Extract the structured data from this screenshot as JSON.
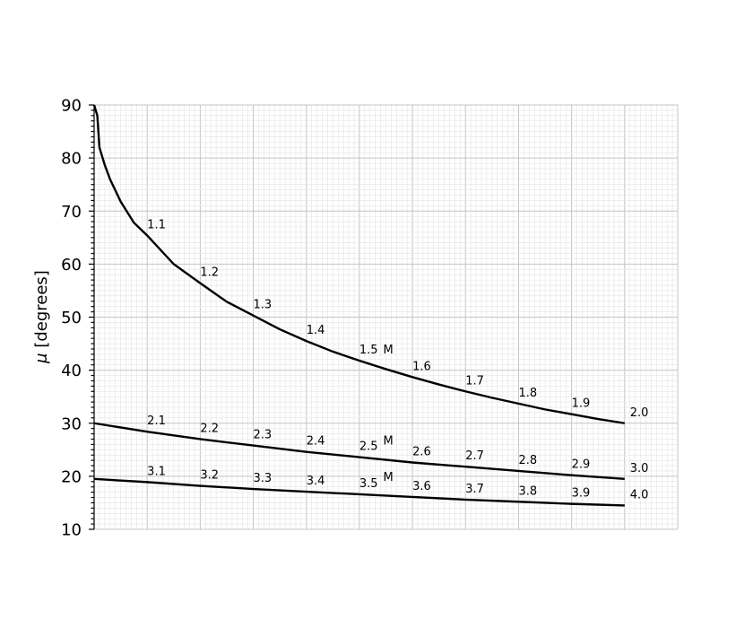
{
  "chart_data": {
    "type": "line",
    "title": "",
    "xlabel": "",
    "ylabel": "μ [degrees]",
    "ylabel_symbol": "μ",
    "ylabel_text": " [degrees]",
    "ylim": [
      10,
      90
    ],
    "yticks": [
      "10",
      "20",
      "30",
      "40",
      "50",
      "60",
      "70",
      "80",
      "90"
    ],
    "xlim": [
      0,
      11
    ],
    "grid": true,
    "series": [
      {
        "x": [
          0.0,
          0.06,
          0.1,
          0.2,
          0.3,
          0.5,
          0.75,
          1,
          1.5,
          2,
          2.5,
          3,
          3.5,
          4,
          4.5,
          5,
          5.5,
          6,
          6.5,
          7,
          7.5,
          8,
          8.5,
          9,
          9.5,
          10
        ],
        "values": [
          90,
          88,
          82,
          78.7,
          76.0,
          71.8,
          67.8,
          65.4,
          60.0,
          56.4,
          52.9,
          50.3,
          47.7,
          45.5,
          43.5,
          41.8,
          40.2,
          38.7,
          37.3,
          36.0,
          34.8,
          33.7,
          32.6,
          31.7,
          30.8,
          30.0
        ]
      },
      {
        "x": [
          0,
          1,
          2,
          3,
          4,
          5,
          6,
          7,
          8,
          9,
          10
        ],
        "values": [
          30.0,
          28.4,
          27.0,
          25.8,
          24.6,
          23.6,
          22.6,
          21.8,
          21.0,
          20.2,
          19.5
        ]
      },
      {
        "x": [
          0,
          1,
          2,
          3,
          4,
          5,
          6,
          7,
          8,
          9,
          10
        ],
        "values": [
          19.5,
          18.9,
          18.2,
          17.6,
          17.1,
          16.6,
          16.1,
          15.6,
          15.2,
          14.8,
          14.5
        ]
      }
    ],
    "annotations": [
      {
        "text": "1.1",
        "x": 1.0,
        "y": 65.4
      },
      {
        "text": "1.2",
        "x": 2.0,
        "y": 56.4
      },
      {
        "text": "1.3",
        "x": 3.0,
        "y": 50.3
      },
      {
        "text": "1.4",
        "x": 4.0,
        "y": 45.5
      },
      {
        "text": "1.5",
        "x": 5.0,
        "y": 41.8
      },
      {
        "text": "1.6",
        "x": 6.0,
        "y": 38.7
      },
      {
        "text": "1.7",
        "x": 7.0,
        "y": 36.0
      },
      {
        "text": "1.8",
        "x": 8.0,
        "y": 33.7
      },
      {
        "text": "1.9",
        "x": 9.0,
        "y": 31.7
      },
      {
        "text": "2.0",
        "x": 10.1,
        "y": 30.0
      },
      {
        "text": "M",
        "x": 5.45,
        "y": 41.8
      },
      {
        "text": "2.1",
        "x": 1.0,
        "y": 28.4
      },
      {
        "text": "2.2",
        "x": 2.0,
        "y": 27.0
      },
      {
        "text": "2.3",
        "x": 3.0,
        "y": 25.8
      },
      {
        "text": "2.4",
        "x": 4.0,
        "y": 24.6
      },
      {
        "text": "2.5",
        "x": 5.0,
        "y": 23.6
      },
      {
        "text": "2.6",
        "x": 6.0,
        "y": 22.6
      },
      {
        "text": "2.7",
        "x": 7.0,
        "y": 21.8
      },
      {
        "text": "2.8",
        "x": 8.0,
        "y": 21.0
      },
      {
        "text": "2.9",
        "x": 9.0,
        "y": 20.2
      },
      {
        "text": "3.0",
        "x": 10.1,
        "y": 19.5
      },
      {
        "text": "M",
        "x": 5.45,
        "y": 24.6
      },
      {
        "text": "3.1",
        "x": 1.0,
        "y": 18.9
      },
      {
        "text": "3.2",
        "x": 2.0,
        "y": 18.2
      },
      {
        "text": "3.3",
        "x": 3.0,
        "y": 17.6
      },
      {
        "text": "3.4",
        "x": 4.0,
        "y": 17.1
      },
      {
        "text": "3.5",
        "x": 5.0,
        "y": 16.6
      },
      {
        "text": "3.6",
        "x": 6.0,
        "y": 16.1
      },
      {
        "text": "3.7",
        "x": 7.0,
        "y": 15.6
      },
      {
        "text": "3.8",
        "x": 8.0,
        "y": 15.2
      },
      {
        "text": "3.9",
        "x": 9.0,
        "y": 14.8
      },
      {
        "text": "4.0",
        "x": 10.1,
        "y": 14.5
      },
      {
        "text": "M",
        "x": 5.45,
        "y": 17.8
      }
    ],
    "colors": {
      "line": "#000000",
      "major_grid": "#c4c4c4",
      "minor_grid": "#e3e3e3"
    }
  }
}
